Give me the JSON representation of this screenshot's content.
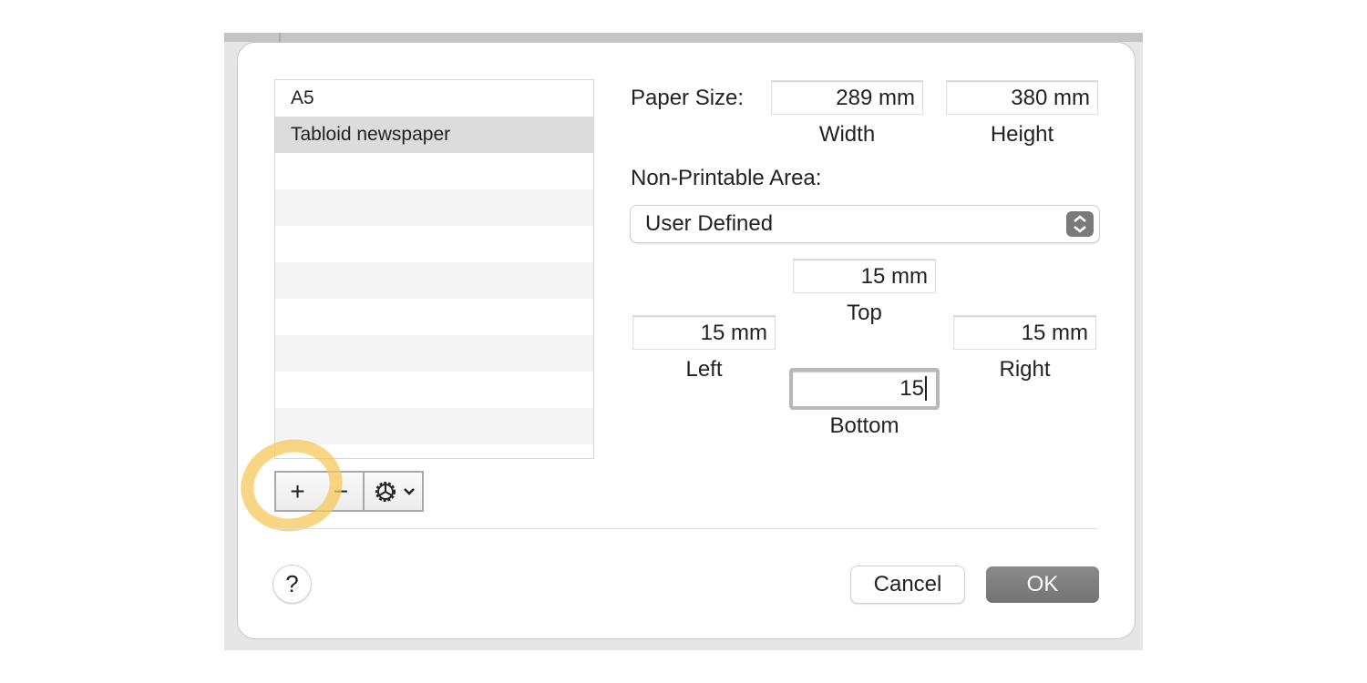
{
  "list": {
    "items": [
      {
        "label": "A5",
        "selected": false
      },
      {
        "label": "Tabloid newspaper",
        "selected": true
      }
    ]
  },
  "toolbar": {
    "add_label": "+",
    "remove_label": "−",
    "gear_icon": "gear-icon",
    "chevron_icon": "chevron-down-icon"
  },
  "paper_size": {
    "label": "Paper Size:",
    "width_value": "289 mm",
    "width_label": "Width",
    "height_value": "380 mm",
    "height_label": "Height"
  },
  "non_printable": {
    "label": "Non-Printable Area:",
    "selected": "User Defined",
    "top_value": "15 mm",
    "top_label": "Top",
    "left_value": "15 mm",
    "left_label": "Left",
    "right_value": "15 mm",
    "right_label": "Right",
    "bottom_value": "15",
    "bottom_label": "Bottom"
  },
  "footer": {
    "help_label": "?",
    "cancel_label": "Cancel",
    "ok_label": "OK"
  },
  "colors": {
    "highlight": "#f5c85a",
    "ok_button": "#7b7b7b",
    "selected_row": "#dcdcdc"
  }
}
